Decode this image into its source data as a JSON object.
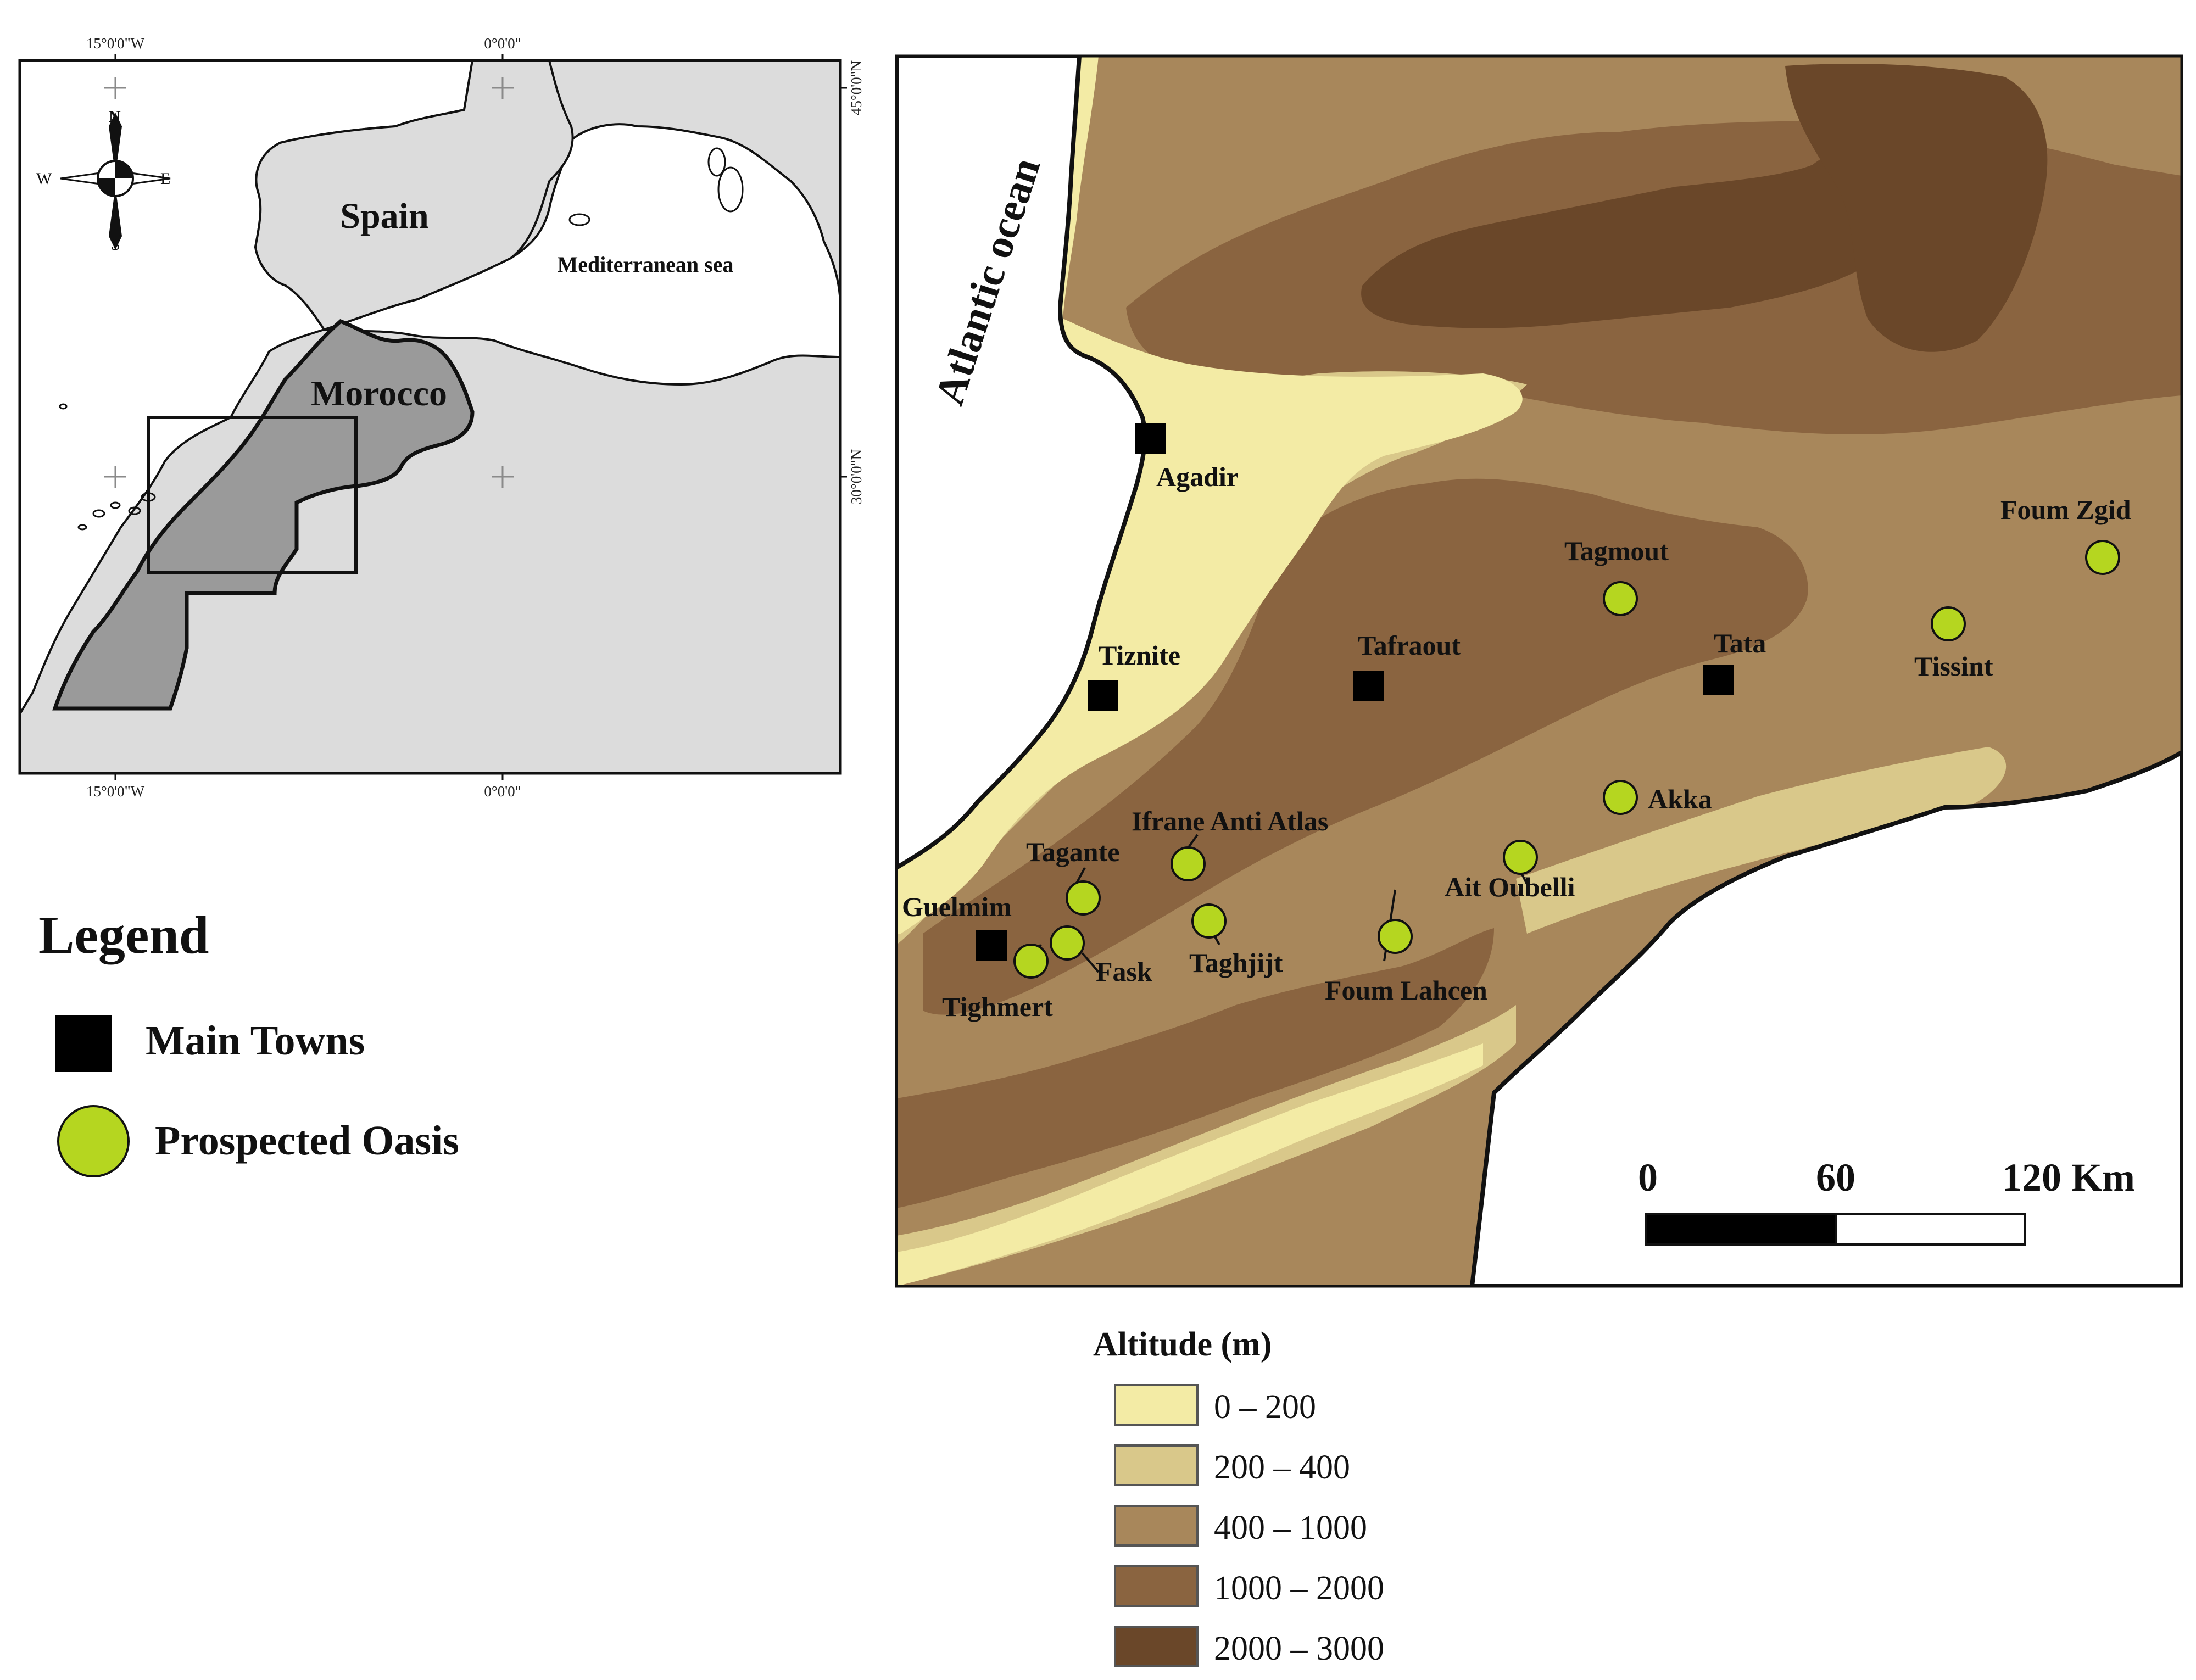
{
  "inset_map": {
    "top_ticks": [
      "15°0'0\"W",
      "0°0'0\""
    ],
    "bottom_ticks": [
      "15°0'0\"W",
      "0°0'0\""
    ],
    "right_ticks": [
      "45°0'0\"N",
      "30°0'0\"N"
    ],
    "labels": {
      "spain": "Spain",
      "mediterranean": "Mediterranean sea",
      "morocco": "Morocco"
    },
    "compass": {
      "n": "N",
      "s": "S",
      "e": "E",
      "w": "W"
    },
    "colors": {
      "land": "#dcdcdc",
      "sea": "#ffffff",
      "morocco": "#9a9a9a"
    }
  },
  "legend": {
    "title": "Legend",
    "items": [
      {
        "label": "Main Towns",
        "symbol": "square",
        "color": "#000000"
      },
      {
        "label": "Prospected Oasis",
        "symbol": "circle",
        "color": "#b5d620"
      }
    ]
  },
  "main_map": {
    "ocean_label": "Atlantic ocean",
    "towns": [
      "Agadir",
      "Tiznite",
      "Tafraout",
      "Tata",
      "Guelmim"
    ],
    "oases": [
      "Tagmout",
      "Foum Zgid",
      "Tissint",
      "Akka",
      "Ifrane Anti Atlas",
      "Tagante",
      "Ait Oubelli",
      "Taghjijt",
      "Fask",
      "Tighmert",
      "Foum Lahcen"
    ],
    "scale_bar": {
      "labels": [
        "0",
        "60",
        "120 Km"
      ]
    }
  },
  "altitude_legend": {
    "title": "Altitude (m)",
    "classes": [
      {
        "label": "0 – 200",
        "color": "#f3eba5"
      },
      {
        "label": "200 – 400",
        "color": "#d9c88a"
      },
      {
        "label": "400 – 1000",
        "color": "#a8875b"
      },
      {
        "label": "1000  – 2000",
        "color": "#8a6440"
      },
      {
        "label": "2000  – 3000",
        "color": "#6a4729"
      }
    ]
  }
}
